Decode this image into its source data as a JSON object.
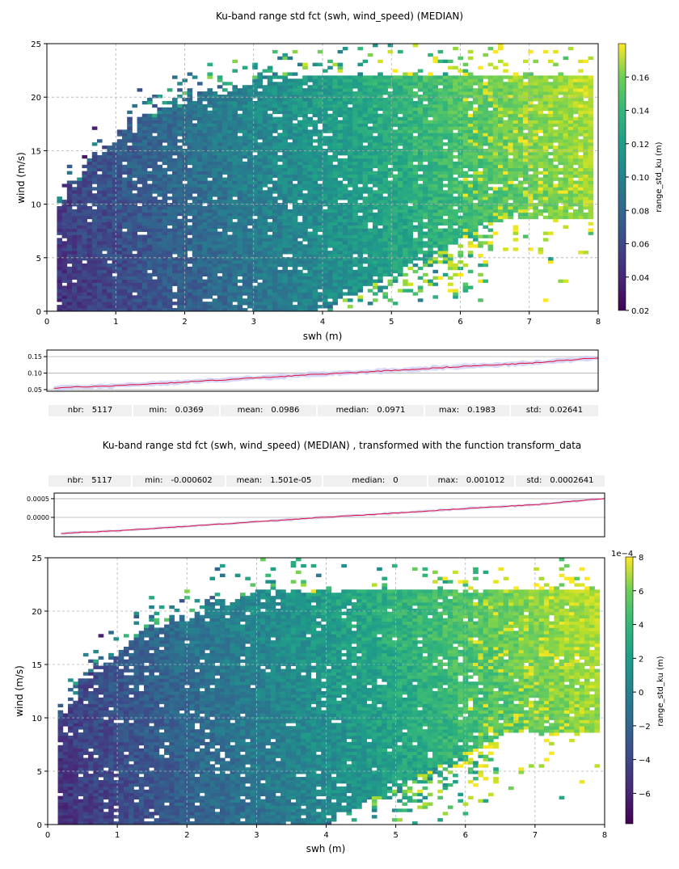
{
  "chart_data": [
    {
      "type": "heatmap",
      "title": "Ku-band range std fct (swh, wind_speed) (MEDIAN)",
      "xlabel": "swh (m)",
      "ylabel": "wind (m/s)",
      "xlim": [
        0,
        8
      ],
      "ylim": [
        0,
        25
      ],
      "xticks": [
        "0",
        "1",
        "2",
        "3",
        "4",
        "5",
        "6",
        "7",
        "8"
      ],
      "yticks": [
        "0",
        "5",
        "10",
        "15",
        "20",
        "25"
      ],
      "colormap": "viridis",
      "colorbar": {
        "label": "range_std_ku (m)",
        "range": [
          0.02,
          0.18
        ],
        "ticks": [
          "0.02",
          "0.04",
          "0.06",
          "0.08",
          "0.10",
          "0.12",
          "0.14",
          "0.16"
        ]
      },
      "grid": true
    },
    {
      "type": "line",
      "series_style": "red median line with light blue spread band",
      "x_range": [
        0.1,
        8
      ],
      "median_line": {
        "x": [
          0.1,
          1,
          2,
          3,
          4,
          5,
          6,
          7,
          8
        ],
        "y": [
          0.055,
          0.062,
          0.073,
          0.085,
          0.097,
          0.108,
          0.12,
          0.13,
          0.147
        ]
      },
      "yticks": [
        "0.05",
        "0.10",
        "0.15"
      ],
      "ylim": [
        0.045,
        0.17
      ]
    },
    {
      "type": "line",
      "series_style": "red median line with light blue spread band",
      "x_range": [
        0.1,
        8
      ],
      "median_line": {
        "x": [
          0.1,
          1,
          2,
          3,
          4,
          5,
          6,
          7,
          8
        ],
        "y": [
          -0.00043,
          -0.00035,
          -0.00023,
          -0.00011,
          1e-05,
          0.00012,
          0.00024,
          0.00034,
          0.00051
        ]
      },
      "yticks": [
        "0.0005",
        "0.0000"
      ],
      "ylim": [
        -0.00052,
        0.00065
      ]
    },
    {
      "type": "heatmap",
      "xlabel": "swh (m)",
      "ylabel": "wind (m/s)",
      "xlim": [
        0,
        8
      ],
      "ylim": [
        0,
        25
      ],
      "xticks": [
        "0",
        "1",
        "2",
        "3",
        "4",
        "5",
        "6",
        "7",
        "8"
      ],
      "yticks": [
        "0",
        "5",
        "10",
        "15",
        "20",
        "25"
      ],
      "colormap": "viridis",
      "colorbar": {
        "label": "range_std_ku (m)",
        "range": [
          -7.8,
          8
        ],
        "exponent": "1e−4",
        "ticks": [
          "−6",
          "−4",
          "−2",
          "0",
          "2",
          "4",
          "6",
          "8"
        ]
      },
      "grid": true
    }
  ],
  "stats_top": [
    {
      "label": "nbr:",
      "value": "5117"
    },
    {
      "label": "min:",
      "value": "0.0369"
    },
    {
      "label": "mean:",
      "value": "0.0986"
    },
    {
      "label": "median:",
      "value": "0.0971"
    },
    {
      "label": "max:",
      "value": "0.1983"
    },
    {
      "label": "std:",
      "value": "0.02641"
    }
  ],
  "title2": "Ku-band range std fct (swh, wind_speed) (MEDIAN) , transformed with the function transform_data",
  "stats_bottom": [
    {
      "label": "nbr:",
      "value": "5117"
    },
    {
      "label": "min:",
      "value": "-0.000602"
    },
    {
      "label": "mean:",
      "value": "1.501e-05"
    },
    {
      "label": "median:",
      "value": "0"
    },
    {
      "label": "max:",
      "value": "0.001012"
    },
    {
      "label": "std:",
      "value": "0.0002641"
    }
  ],
  "colors": {
    "line": "#e0103a",
    "band": "#c9c9f4",
    "grid": "#b0b0b0",
    "statbg": "#f0f0f0"
  }
}
